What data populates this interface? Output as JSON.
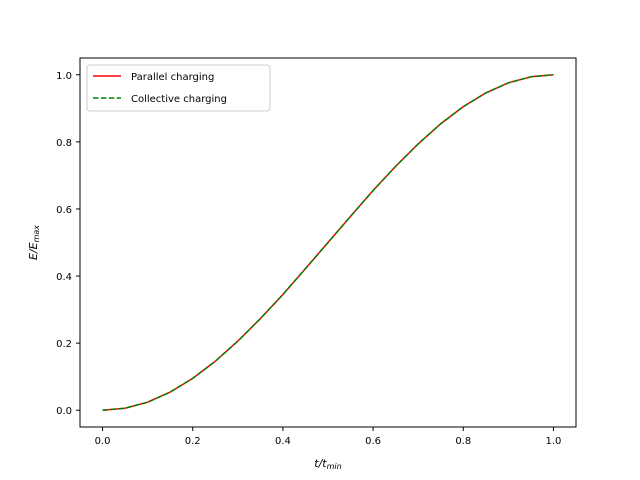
{
  "chart_data": {
    "type": "line",
    "xlabel": {
      "main": "t/t",
      "sub": "min"
    },
    "ylabel": {
      "main": "E/E",
      "sub": "max"
    },
    "xlim": [
      -0.05,
      1.05
    ],
    "ylim": [
      -0.05,
      1.05
    ],
    "x_ticks": [
      0.0,
      0.2,
      0.4,
      0.6,
      0.8,
      1.0
    ],
    "y_ticks": [
      0.0,
      0.2,
      0.4,
      0.6,
      0.8,
      1.0
    ],
    "x_tick_labels": [
      "0.0",
      "0.2",
      "0.4",
      "0.6",
      "0.8",
      "1.0"
    ],
    "y_tick_labels": [
      "0.0",
      "0.2",
      "0.4",
      "0.6",
      "0.8",
      "1.0"
    ],
    "grid": false,
    "legend_position": "upper-left",
    "x": [
      0.0,
      0.05,
      0.1,
      0.15,
      0.2,
      0.25,
      0.3,
      0.35,
      0.4,
      0.45,
      0.5,
      0.55,
      0.6,
      0.65,
      0.7,
      0.75,
      0.8,
      0.85,
      0.9,
      0.95,
      1.0
    ],
    "series": [
      {
        "name": "Parallel charging",
        "color": "#ff0000",
        "style": "solid",
        "values": [
          0.0,
          0.006,
          0.024,
          0.054,
          0.095,
          0.146,
          0.206,
          0.273,
          0.345,
          0.422,
          0.5,
          0.578,
          0.655,
          0.727,
          0.794,
          0.854,
          0.905,
          0.946,
          0.976,
          0.994,
          1.0
        ]
      },
      {
        "name": "Collective charging",
        "color": "#008000",
        "style": "dashed",
        "values": [
          0.0,
          0.006,
          0.024,
          0.054,
          0.095,
          0.146,
          0.206,
          0.273,
          0.345,
          0.422,
          0.5,
          0.578,
          0.655,
          0.727,
          0.794,
          0.854,
          0.905,
          0.946,
          0.976,
          0.994,
          1.0
        ]
      }
    ]
  }
}
